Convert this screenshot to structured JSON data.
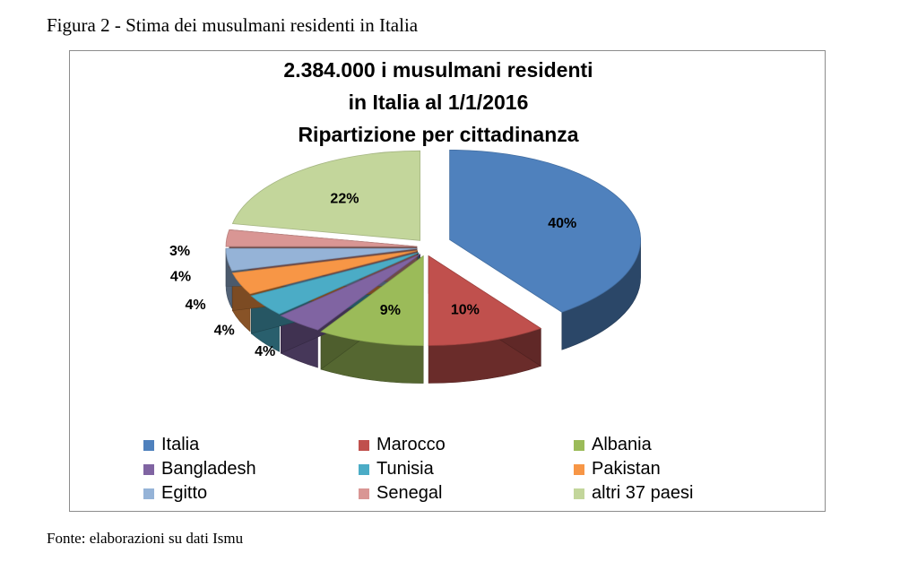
{
  "figure_caption": "Figura 2 - Stima dei musulmani residenti in Italia",
  "source_note": "Fonte: elaborazioni su dati Ismu",
  "chart_data": {
    "type": "pie",
    "title_lines": [
      "2.384.000 i musulmani residenti",
      "in Italia al 1/1/2016",
      "Ripartizione per cittadinanza"
    ],
    "unit": "%",
    "legend_position": "bottom",
    "slices": [
      {
        "name": "Italia",
        "value": 40,
        "label": "40%",
        "color": "#4F81BD"
      },
      {
        "name": "Marocco",
        "value": 10,
        "label": "10%",
        "color": "#C0504D"
      },
      {
        "name": "Albania",
        "value": 9,
        "label": "9%",
        "color": "#9BBB59"
      },
      {
        "name": "Bangladesh",
        "value": 4,
        "label": "4%",
        "color": "#8064A2"
      },
      {
        "name": "Tunisia",
        "value": 4,
        "label": "4%",
        "color": "#4BACC6"
      },
      {
        "name": "Pakistan",
        "value": 4,
        "label": "4%",
        "color": "#F79646"
      },
      {
        "name": "Egitto",
        "value": 4,
        "label": "4%",
        "color": "#95B3D7"
      },
      {
        "name": "Senegal",
        "value": 3,
        "label": "3%",
        "color": "#D99694"
      },
      {
        "name": "altri 37 paesi",
        "value": 22,
        "label": "22%",
        "color": "#C3D69B"
      }
    ]
  }
}
